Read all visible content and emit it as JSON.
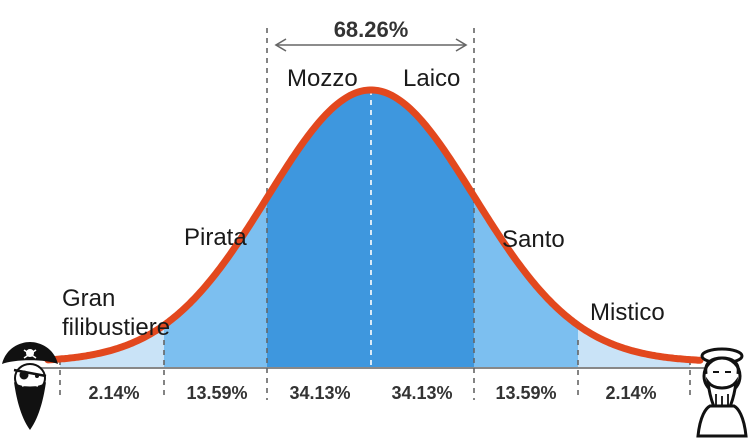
{
  "range_label": "68.26%",
  "bands": [
    {
      "label": "Gran filibustiere",
      "lines": [
        "Gran",
        "filibustiere"
      ]
    },
    {
      "label": "Pirata"
    },
    {
      "label": "Mozzo"
    },
    {
      "label": "Laico"
    },
    {
      "label": "Santo"
    },
    {
      "label": "Mistico"
    }
  ],
  "percentages": [
    "2.14%",
    "13.59%",
    "34.13%",
    "34.13%",
    "13.59%",
    "2.14%"
  ],
  "colors": {
    "curve": "#e2481e",
    "outer_fill": "#c9e3f7",
    "mid_fill": "#7cbff0",
    "center_fill": "#3e97de",
    "dashed": "#666666",
    "baseline": "#888888",
    "text": "#333333"
  },
  "icons": {
    "left": "pirate-icon",
    "right": "saint-icon"
  }
}
